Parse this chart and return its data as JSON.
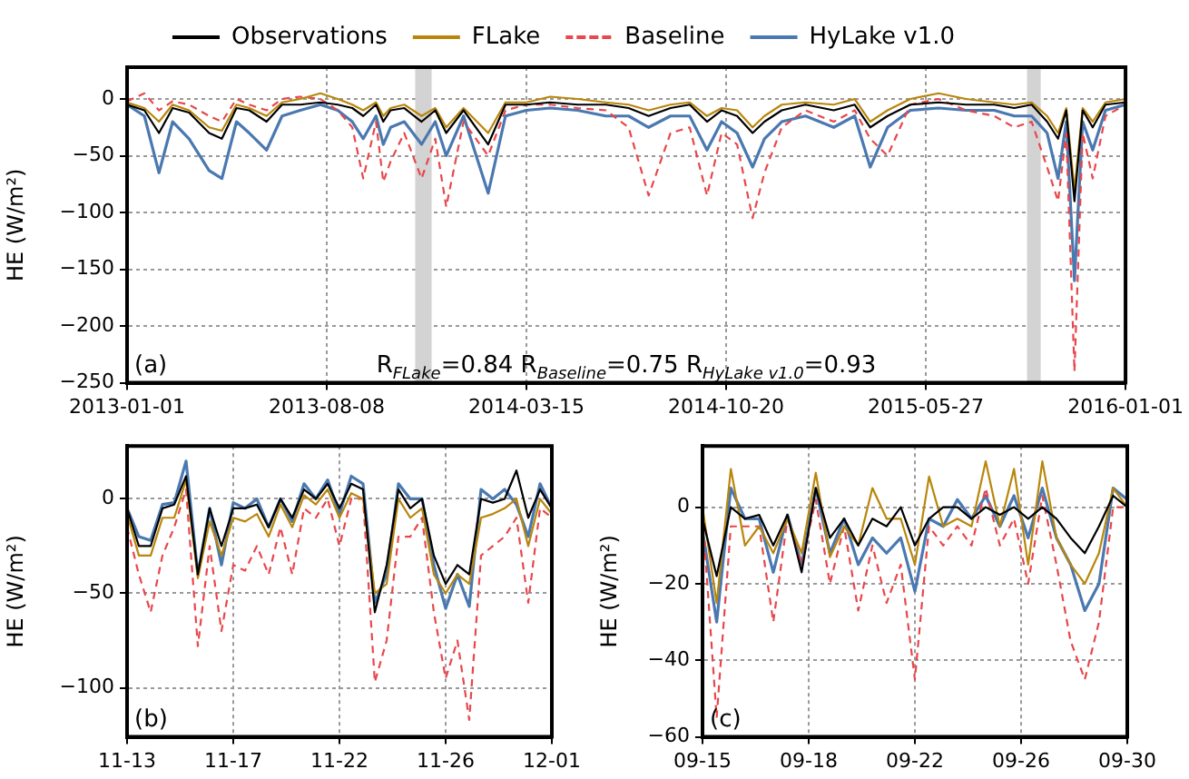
{
  "chart_data": [
    {
      "type": "line",
      "ylabel": "HE (W/m²)",
      "legend": "top",
      "grid": true,
      "annotations": [
        "(a)",
        "R$_{FLake}$=0.84 R$_{Baseline}$=0.75 R$_{HyLake v1.0}$=0.93"
      ],
      "x": [
        "2013-01-01",
        "2013-01-20",
        "2013-02-05",
        "2013-02-20",
        "2013-03-10",
        "2013-04-01",
        "2013-04-15",
        "2013-05-01",
        "2013-05-15",
        "2013-06-03",
        "2013-06-20",
        "2013-07-10",
        "2013-08-01",
        "2013-08-20",
        "2013-09-05",
        "2013-09-17",
        "2013-10-01",
        "2013-10-09",
        "2013-10-17",
        "2013-11-01",
        "2013-11-20",
        "2013-12-05",
        "2013-12-17",
        "2014-01-05",
        "2014-02-01",
        "2014-02-20",
        "2014-03-15",
        "2014-04-10",
        "2014-05-10",
        "2014-06-10",
        "2014-07-05",
        "2014-07-27",
        "2014-08-20",
        "2014-09-10",
        "2014-09-29",
        "2014-10-15",
        "2014-11-01",
        "2014-11-18",
        "2014-12-01",
        "2014-12-20",
        "2015-01-15",
        "2015-02-15",
        "2015-03-10",
        "2015-03-27",
        "2015-04-15",
        "2015-05-10",
        "2015-06-10",
        "2015-07-10",
        "2015-08-10",
        "2015-09-01",
        "2015-09-20",
        "2015-10-07",
        "2015-10-19",
        "2015-10-28",
        "2015-11-06",
        "2015-11-15",
        "2015-11-26",
        "2015-12-10",
        "2016-01-01"
      ],
      "series": [
        {
          "name": "Observations",
          "color": "#000000",
          "values": [
            -5,
            -10,
            -30,
            -8,
            -12,
            -30,
            -35,
            -8,
            -10,
            -20,
            -5,
            -5,
            -3,
            -5,
            -8,
            -15,
            -5,
            -20,
            -10,
            -8,
            -20,
            -10,
            -30,
            -10,
            -40,
            -5,
            -5,
            -3,
            -5,
            -5,
            -8,
            -15,
            -8,
            -5,
            -20,
            -10,
            -15,
            -30,
            -20,
            -10,
            -5,
            -10,
            -5,
            -25,
            -15,
            -5,
            -3,
            -5,
            -5,
            -8,
            -5,
            -20,
            -35,
            -10,
            -90,
            -10,
            -25,
            -5,
            -3
          ]
        },
        {
          "name": "FLake",
          "color": "#b8860b",
          "values": [
            -3,
            -8,
            -20,
            -5,
            -10,
            -25,
            -28,
            -5,
            -8,
            -15,
            -3,
            0,
            5,
            0,
            -5,
            -10,
            -3,
            -15,
            -8,
            -5,
            -15,
            -8,
            -25,
            -8,
            -30,
            -3,
            -3,
            2,
            0,
            -3,
            -5,
            -10,
            -5,
            -3,
            -15,
            -8,
            -10,
            -25,
            -15,
            -5,
            -3,
            -5,
            0,
            -20,
            -10,
            0,
            5,
            0,
            -3,
            -5,
            -3,
            -15,
            -30,
            -8,
            -80,
            -8,
            -20,
            -3,
            0
          ]
        },
        {
          "name": "Baseline",
          "color": "#e8474b",
          "line_style": "dashed",
          "values": [
            -2,
            5,
            -10,
            -2,
            -5,
            -15,
            -20,
            0,
            -5,
            -10,
            0,
            2,
            0,
            -10,
            -25,
            -70,
            -20,
            -73,
            -55,
            -30,
            -70,
            -35,
            -95,
            -20,
            -50,
            -10,
            -5,
            -5,
            -8,
            -10,
            -25,
            -85,
            -30,
            -25,
            -85,
            -30,
            -40,
            -105,
            -65,
            -25,
            -10,
            -20,
            -10,
            -35,
            -50,
            -5,
            0,
            -10,
            -15,
            -25,
            -20,
            -60,
            -90,
            -30,
            -240,
            -30,
            -70,
            -15,
            -5
          ]
        },
        {
          "name": "HyLake v1.0",
          "color": "#4a78b0",
          "values": [
            -5,
            -15,
            -65,
            -20,
            -35,
            -63,
            -70,
            -20,
            -30,
            -45,
            -15,
            -10,
            -5,
            -10,
            -20,
            -35,
            -15,
            -40,
            -25,
            -20,
            -40,
            -20,
            -50,
            -15,
            -83,
            -15,
            -10,
            -8,
            -10,
            -15,
            -15,
            -25,
            -15,
            -15,
            -45,
            -20,
            -30,
            -60,
            -35,
            -20,
            -15,
            -25,
            -15,
            -60,
            -25,
            -10,
            -8,
            -10,
            -10,
            -15,
            -15,
            -30,
            -70,
            -20,
            -160,
            -20,
            -45,
            -10,
            -5
          ]
        }
      ],
      "xlim": [
        "2013-01-01",
        "2016-01-01"
      ],
      "xticks": [
        "2013-01-01",
        "2013-08-08",
        "2014-03-15",
        "2014-10-20",
        "2015-05-27",
        "2016-01-01"
      ],
      "ylim": [
        -250,
        28
      ],
      "yticks": [
        -250,
        -200,
        -150,
        -100,
        -50,
        0
      ],
      "bands": [
        {
          "axis": "x",
          "from": "2013-11-13",
          "to": "2013-12-01",
          "color": "#d3d3d3"
        },
        {
          "axis": "x",
          "from": "2015-09-15",
          "to": "2015-09-30",
          "color": "#d3d3d3"
        }
      ]
    },
    {
      "type": "line",
      "ylabel": "HE (W/m²)",
      "grid": true,
      "annotations": [
        "(b)"
      ],
      "x": [
        "--11-13",
        "--11-13T12:00",
        "--11-14",
        "--11-14T12:00",
        "--11-15",
        "--11-15T12:00",
        "--11-16",
        "--11-16T12:00",
        "--11-17",
        "--11-17T12:00",
        "--11-18",
        "--11-18T12:00",
        "--11-19",
        "--11-19T12:00",
        "--11-20",
        "--11-20T12:00",
        "--11-21",
        "--11-21T12:00",
        "--11-22",
        "--11-22T12:00",
        "--11-23",
        "--11-23T12:00",
        "--11-24",
        "--11-24T12:00",
        "--11-25",
        "--11-25T12:00",
        "--11-26",
        "--11-26T12:00",
        "--11-27",
        "--11-27T12:00",
        "--11-28",
        "--11-28T12:00",
        "--11-29",
        "--11-29T12:00",
        "--11-30",
        "--11-30T12:00",
        "--12-01"
      ],
      "series": [
        {
          "color": "#000000",
          "values": [
            -5,
            -25,
            -25,
            -5,
            -3,
            12,
            -40,
            -5,
            -25,
            -5,
            -5,
            -3,
            -15,
            0,
            -10,
            5,
            0,
            8,
            -5,
            8,
            5,
            -60,
            -35,
            5,
            -5,
            0,
            -30,
            -45,
            -35,
            -40,
            0,
            -2,
            0,
            15,
            -10,
            5,
            -5
          ]
        },
        {
          "color": "#b8860b",
          "values": [
            -8,
            -30,
            -30,
            -10,
            -10,
            10,
            -42,
            -12,
            -30,
            -10,
            -12,
            -8,
            -20,
            -3,
            -15,
            2,
            -3,
            5,
            -10,
            3,
            0,
            -50,
            -45,
            0,
            -10,
            -5,
            -40,
            -50,
            -40,
            -45,
            -10,
            -8,
            -5,
            0,
            -25,
            0,
            -8
          ]
        },
        {
          "color": "#e8474b",
          "line_style": "dashed",
          "values": [
            -15,
            -40,
            -60,
            -30,
            -15,
            5,
            -78,
            -25,
            -70,
            -35,
            -38,
            -25,
            -40,
            -15,
            -40,
            -5,
            -10,
            0,
            -25,
            0,
            0,
            -97,
            -75,
            -20,
            -20,
            -10,
            -60,
            -95,
            -75,
            -117,
            -30,
            -25,
            -20,
            -10,
            -55,
            -5,
            -10
          ]
        },
        {
          "color": "#4a78b0",
          "values": [
            -5,
            -20,
            -22,
            -3,
            -2,
            20,
            -40,
            -5,
            -35,
            -2,
            -5,
            0,
            -15,
            0,
            -12,
            8,
            0,
            10,
            -8,
            12,
            8,
            -55,
            -40,
            8,
            0,
            0,
            -35,
            -58,
            -40,
            -57,
            5,
            0,
            5,
            -3,
            -20,
            8,
            -5
          ]
        }
      ],
      "xlim": [
        "--11-13",
        "--12-01"
      ],
      "xticks": [
        {
          "value": "--11-13",
          "label": "11-13"
        },
        {
          "value": "--11-17T12:00",
          "label": "11-17"
        },
        {
          "value": "--11-22",
          "label": "11-22"
        },
        {
          "value": "--11-26T12:00",
          "label": "11-26"
        },
        {
          "value": "--12-01",
          "label": "12-01"
        }
      ],
      "ylim": [
        -126,
        28
      ],
      "yticks": [
        -100,
        -50,
        0
      ]
    },
    {
      "type": "line",
      "ylabel": "HE (W/m²)",
      "grid": true,
      "annotations": [
        "(c)"
      ],
      "x": [
        "--09-15",
        "--09-15T12:00",
        "--09-16",
        "--09-16T12:00",
        "--09-17",
        "--09-17T12:00",
        "--09-18",
        "--09-18T12:00",
        "--09-19",
        "--09-19T12:00",
        "--09-20",
        "--09-20T12:00",
        "--09-21",
        "--09-21T12:00",
        "--09-22",
        "--09-22T12:00",
        "--09-23",
        "--09-23T12:00",
        "--09-24",
        "--09-24T12:00",
        "--09-25",
        "--09-25T12:00",
        "--09-26",
        "--09-26T12:00",
        "--09-27",
        "--09-27T12:00",
        "--09-28",
        "--09-28T12:00",
        "--09-29",
        "--09-29T12:00",
        "--09-30"
      ],
      "series": [
        {
          "color": "#000000",
          "values": [
            -3,
            -18,
            0,
            -3,
            -2,
            -10,
            -2,
            -17,
            5,
            -8,
            -3,
            -10,
            -3,
            -5,
            0,
            -10,
            -3,
            0,
            0,
            -3,
            0,
            -2,
            0,
            -3,
            0,
            -3,
            -8,
            -12,
            -5,
            3,
            0
          ]
        },
        {
          "color": "#b8860b",
          "values": [
            0,
            -25,
            10,
            -10,
            -5,
            -12,
            -3,
            -12,
            9,
            -13,
            -5,
            -10,
            5,
            -3,
            -3,
            -15,
            8,
            -5,
            -3,
            -5,
            12,
            -5,
            10,
            -15,
            12,
            -8,
            -15,
            -20,
            -12,
            5,
            0
          ]
        },
        {
          "color": "#e8474b",
          "line_style": "dashed",
          "values": [
            -2,
            -55,
            -5,
            -5,
            -5,
            -30,
            -3,
            -15,
            2,
            -20,
            -5,
            -27,
            -10,
            -25,
            -15,
            -45,
            -5,
            -10,
            -5,
            -10,
            5,
            -10,
            -3,
            -20,
            3,
            -15,
            -35,
            -45,
            -30,
            0,
            0
          ]
        },
        {
          "color": "#4a78b0",
          "values": [
            -6,
            -30,
            5,
            -3,
            -3,
            -17,
            -2,
            -15,
            5,
            -12,
            -3,
            -15,
            -8,
            -12,
            -8,
            -22,
            -3,
            -5,
            2,
            -3,
            3,
            -5,
            3,
            -8,
            5,
            -8,
            -15,
            -27,
            -20,
            5,
            2
          ]
        }
      ],
      "xlim": [
        "--09-15",
        "--09-30"
      ],
      "xticks": [
        {
          "value": "--09-15",
          "label": "09-15"
        },
        {
          "value": "--09-18T18:00",
          "label": "09-18"
        },
        {
          "value": "--09-22T12:00",
          "label": "09-22"
        },
        {
          "value": "--09-26T06:00",
          "label": "09-26"
        },
        {
          "value": "--09-30",
          "label": "09-30"
        }
      ],
      "ylim": [
        -60,
        16
      ],
      "yticks": [
        -60,
        -40,
        -20,
        0
      ]
    }
  ]
}
